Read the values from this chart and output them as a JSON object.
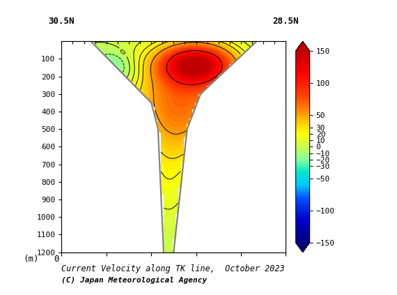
{
  "title_line1": "Current Velocity along TK line,  October 2023",
  "title_line2": "(C) Japan Meteorological Agency",
  "xlabel_left": "30.5N",
  "xlabel_right": "28.5N",
  "ylabel_label": "(m) 0",
  "ylim": [
    0,
    1200
  ],
  "yticks": [
    100,
    200,
    300,
    400,
    500,
    600,
    700,
    800,
    900,
    1000,
    1100,
    1200
  ],
  "colorbar_ticks": [
    150,
    100,
    50,
    30,
    20,
    10,
    0,
    -10,
    -20,
    -30,
    -50,
    -100,
    -150
  ],
  "colorbar_ticklabels": [
    "150",
    "100",
    "50",
    "30",
    "20",
    "10",
    "0",
    "−10",
    "−20",
    "−30",
    "−50",
    "−100",
    "−150"
  ],
  "background_color": "white",
  "contour_levels": [
    -30,
    -20,
    -10,
    0,
    10,
    20,
    30,
    50,
    100
  ],
  "cmap_nodes": [
    0.0,
    0.115,
    0.23,
    0.3,
    0.37,
    0.43,
    0.5,
    0.57,
    0.63,
    0.7,
    0.77,
    0.885,
    1.0
  ],
  "cmap_colors": [
    "#000080",
    "#0000c8",
    "#0050ff",
    "#00c8ff",
    "#00e8c8",
    "#80ffa0",
    "#c8ff50",
    "#ffff00",
    "#ffc800",
    "#ff8000",
    "#ff4000",
    "#ff0000",
    "#c00000"
  ]
}
